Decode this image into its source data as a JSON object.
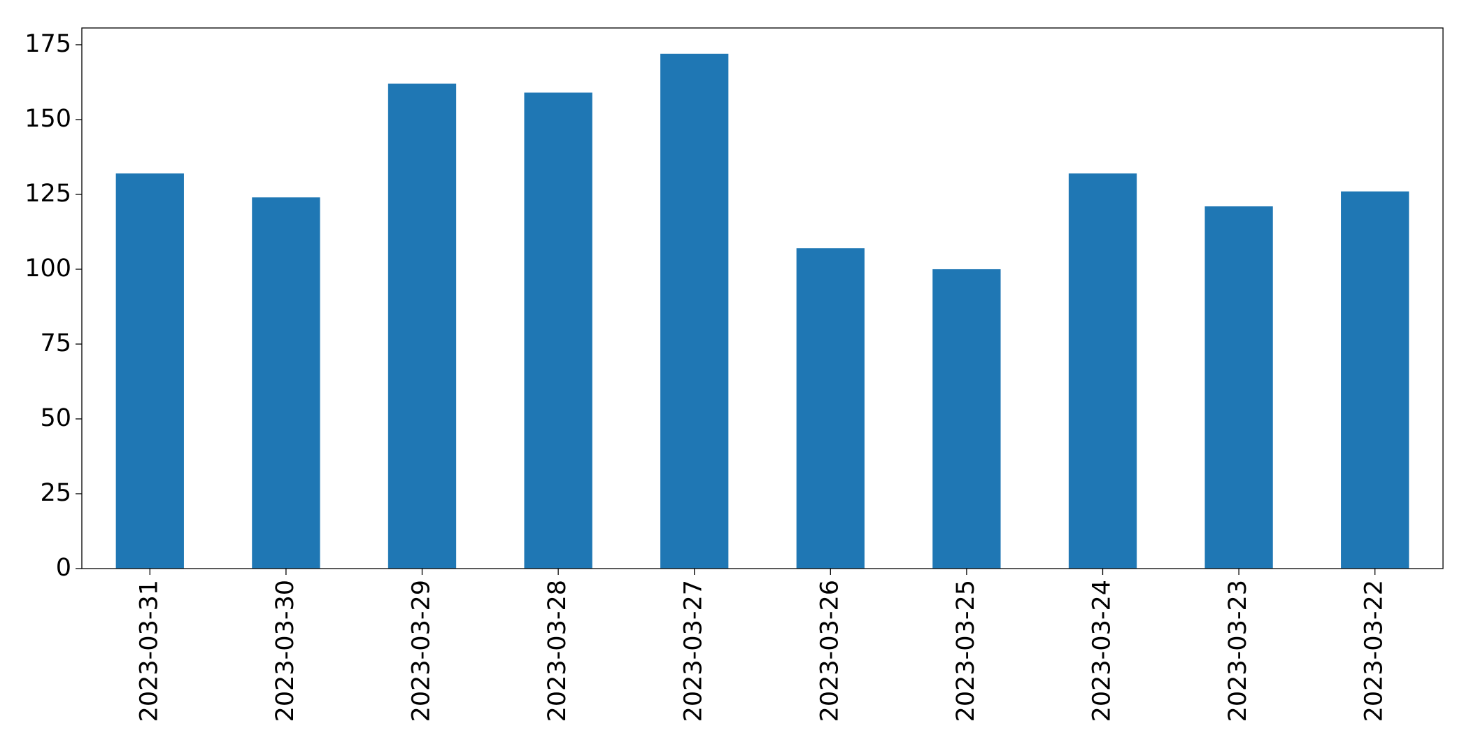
{
  "chart_data": {
    "type": "bar",
    "categories": [
      "2023-03-31",
      "2023-03-30",
      "2023-03-29",
      "2023-03-28",
      "2023-03-27",
      "2023-03-26",
      "2023-03-25",
      "2023-03-24",
      "2023-03-23",
      "2023-03-22"
    ],
    "values": [
      132,
      124,
      162,
      159,
      172,
      107,
      100,
      132,
      121,
      126
    ],
    "color": "#1f77b4",
    "ylim": [
      0,
      180.6
    ],
    "yticks": [
      0,
      25,
      50,
      75,
      100,
      125,
      150,
      175
    ],
    "grid": false
  }
}
